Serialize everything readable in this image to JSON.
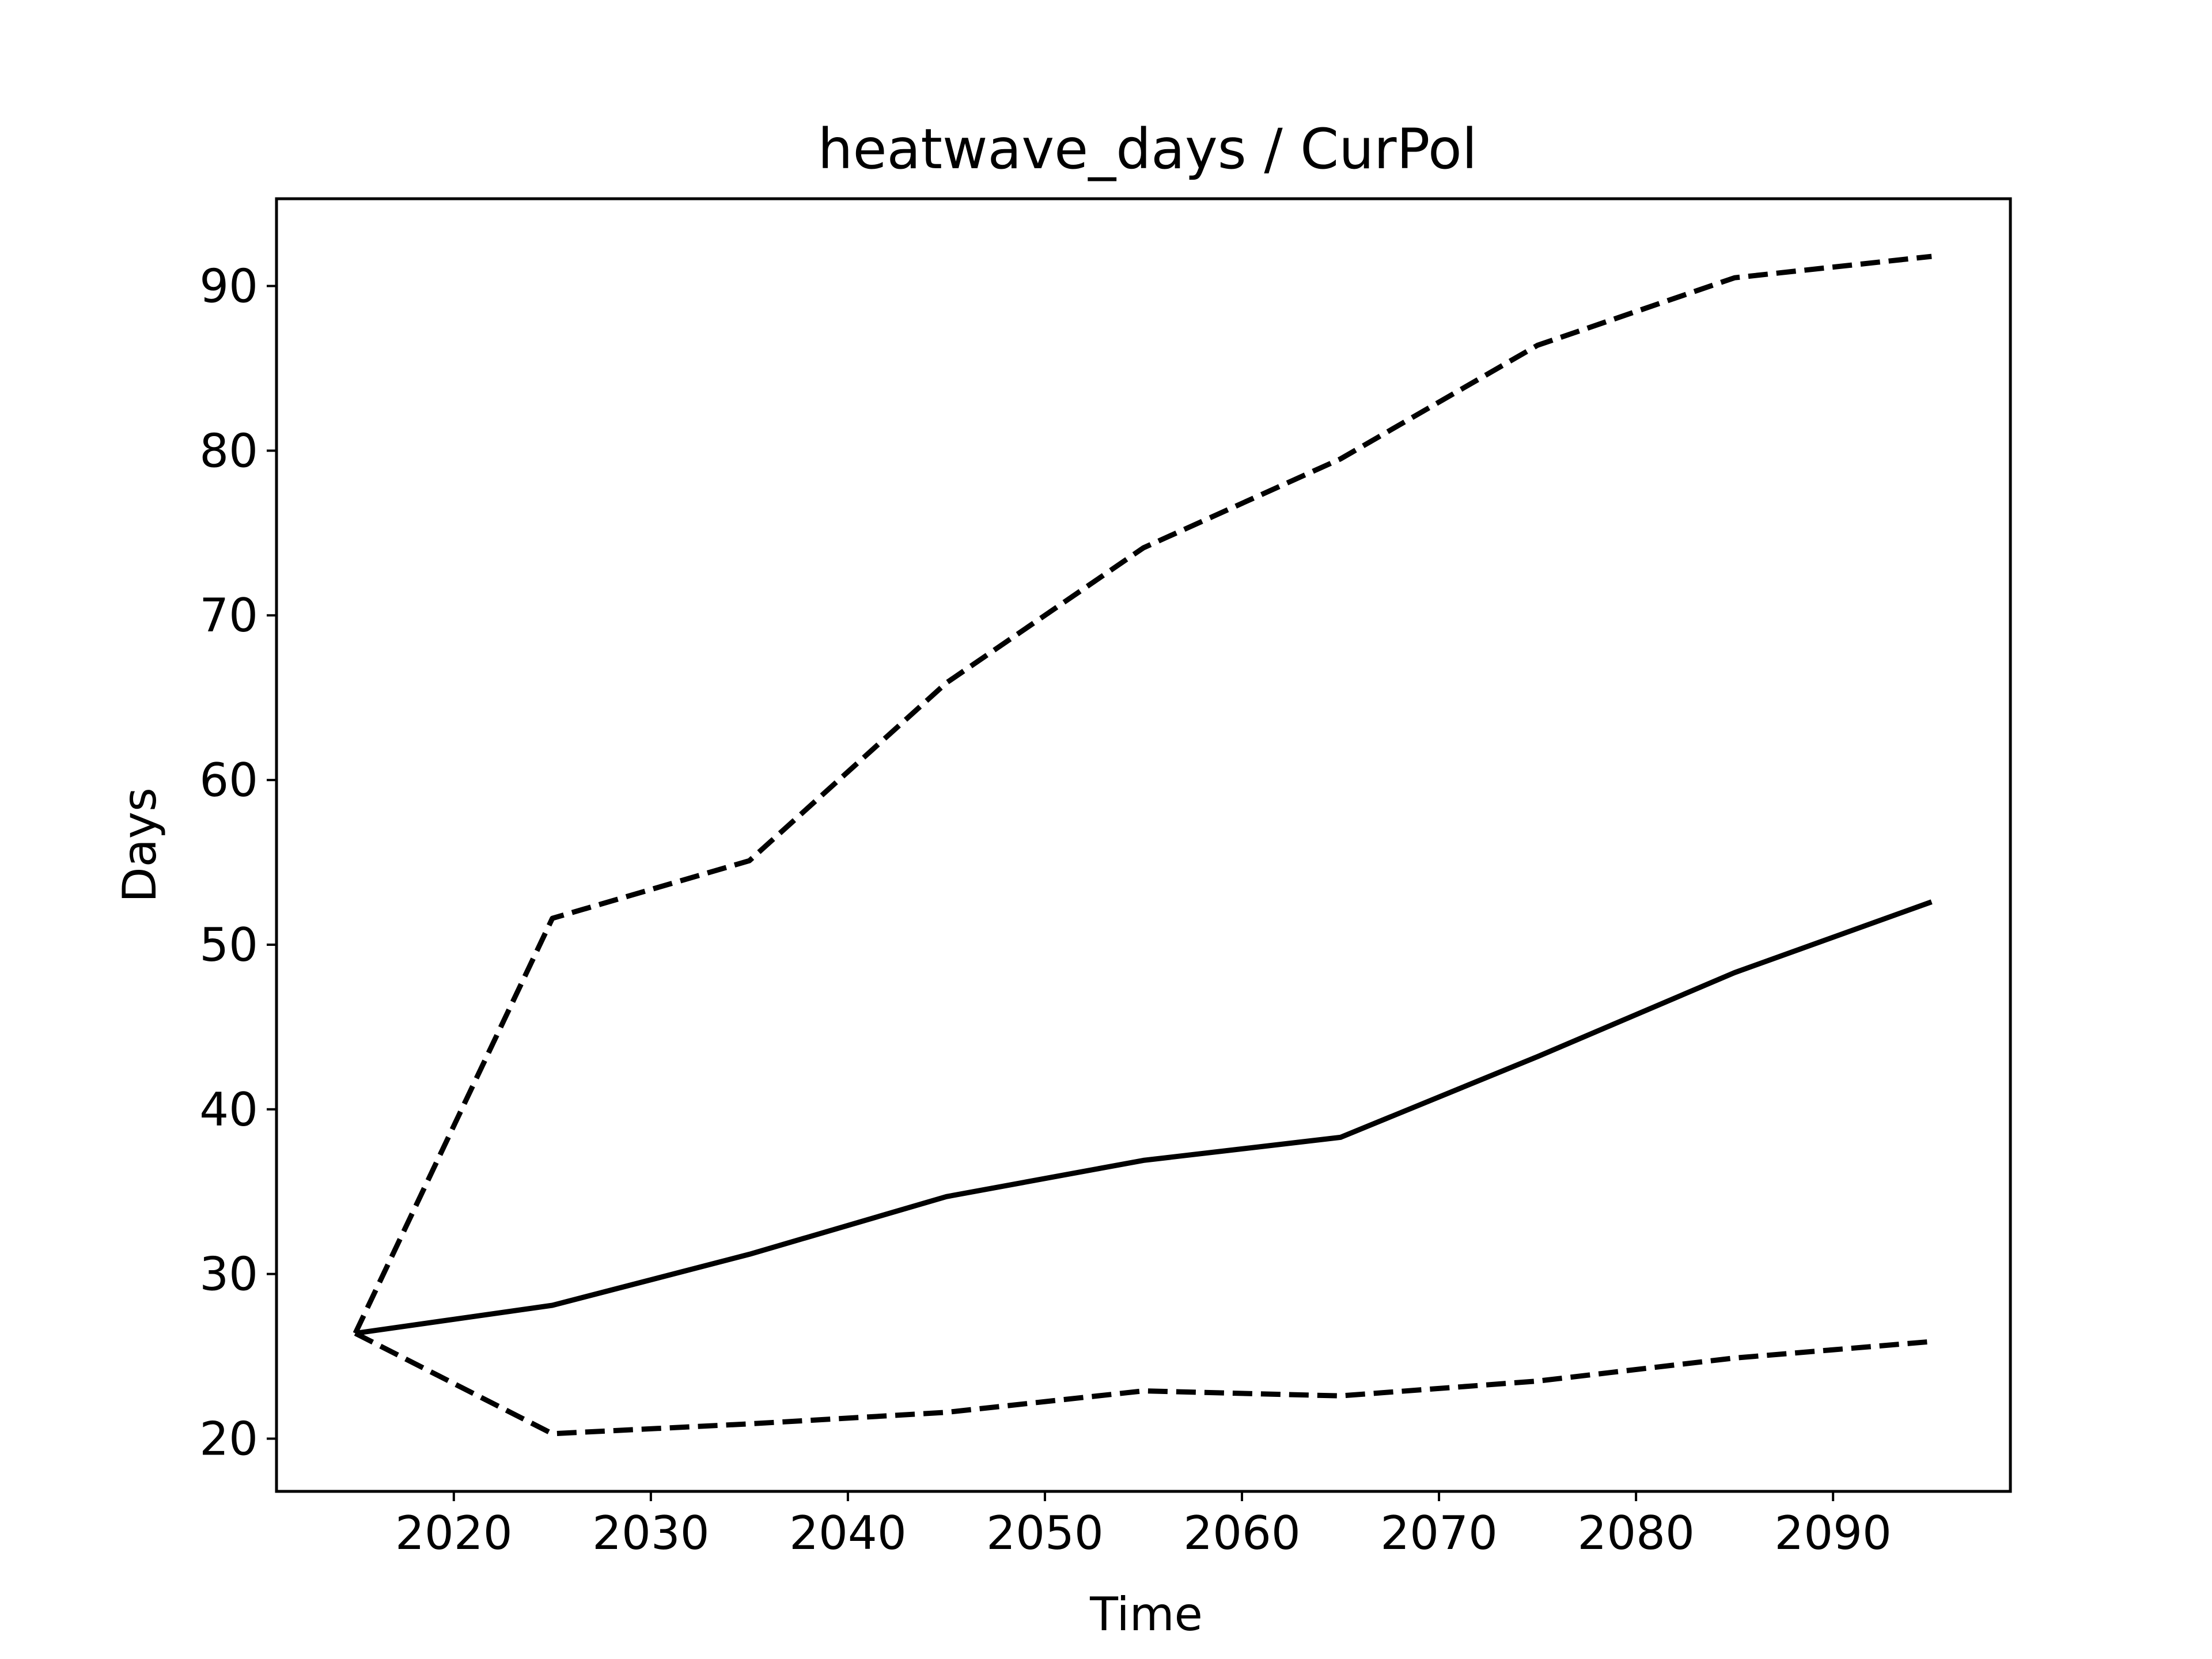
{
  "chart_data": {
    "type": "line",
    "title": "heatwave_days / CurPol",
    "xlabel": "Time",
    "ylabel": "Days",
    "xlim": [
      2011,
      2099
    ],
    "ylim": [
      16.8,
      95.3
    ],
    "xticks": [
      2020,
      2030,
      2040,
      2050,
      2060,
      2070,
      2080,
      2090
    ],
    "yticks": [
      20,
      30,
      40,
      50,
      60,
      70,
      80,
      90
    ],
    "grid": false,
    "x": [
      2015,
      2025,
      2035,
      2045,
      2055,
      2065,
      2075,
      2085,
      2095
    ],
    "series": [
      {
        "style": "dashed",
        "color": "#000000",
        "values": [
          26.4,
          51.6,
          55.1,
          65.9,
          74.1,
          79.5,
          86.4,
          90.5,
          91.8
        ]
      },
      {
        "style": "solid",
        "color": "#000000",
        "values": [
          26.4,
          28.1,
          31.2,
          34.7,
          36.9,
          38.3,
          43.2,
          48.3,
          52.6
        ]
      },
      {
        "style": "dashed",
        "color": "#000000",
        "values": [
          26.4,
          20.3,
          20.9,
          21.6,
          22.9,
          22.6,
          23.5,
          24.9,
          25.9
        ]
      }
    ]
  }
}
